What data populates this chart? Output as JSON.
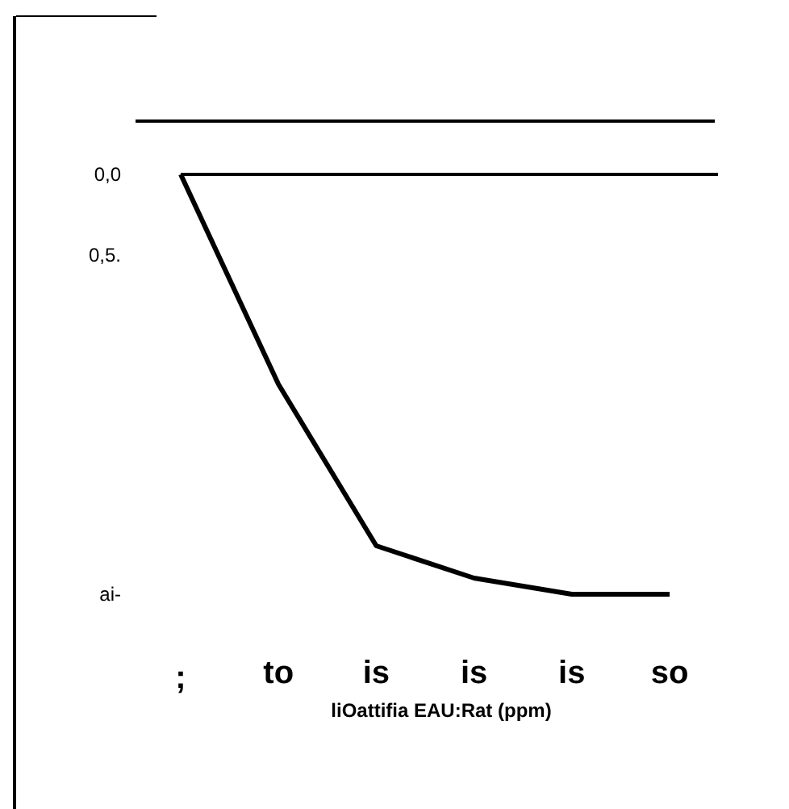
{
  "chart_data": {
    "type": "line",
    "xlabel": "liOattifia EAU:Rat (ppm)",
    "categories": [
      null,
      "to",
      "is",
      "is",
      "is",
      "so"
    ],
    "annotations": [
      ";"
    ],
    "series": [
      {
        "color": "#000000",
        "values": [
          0,
          1.3,
          2.3,
          2.5,
          2.6,
          2.6
        ]
      }
    ],
    "ylim": [
      2.6,
      -0.33
    ],
    "yticks": [
      {
        "value": 0,
        "label": "0,0"
      },
      {
        "value": 0.5,
        "label": "0,5."
      },
      {
        "value": 2.6,
        "label": "ai-"
      }
    ],
    "ref_lines": [
      {
        "axis": "y",
        "value": 0
      }
    ],
    "grid": false,
    "marker": "none",
    "line_style": "solid"
  }
}
